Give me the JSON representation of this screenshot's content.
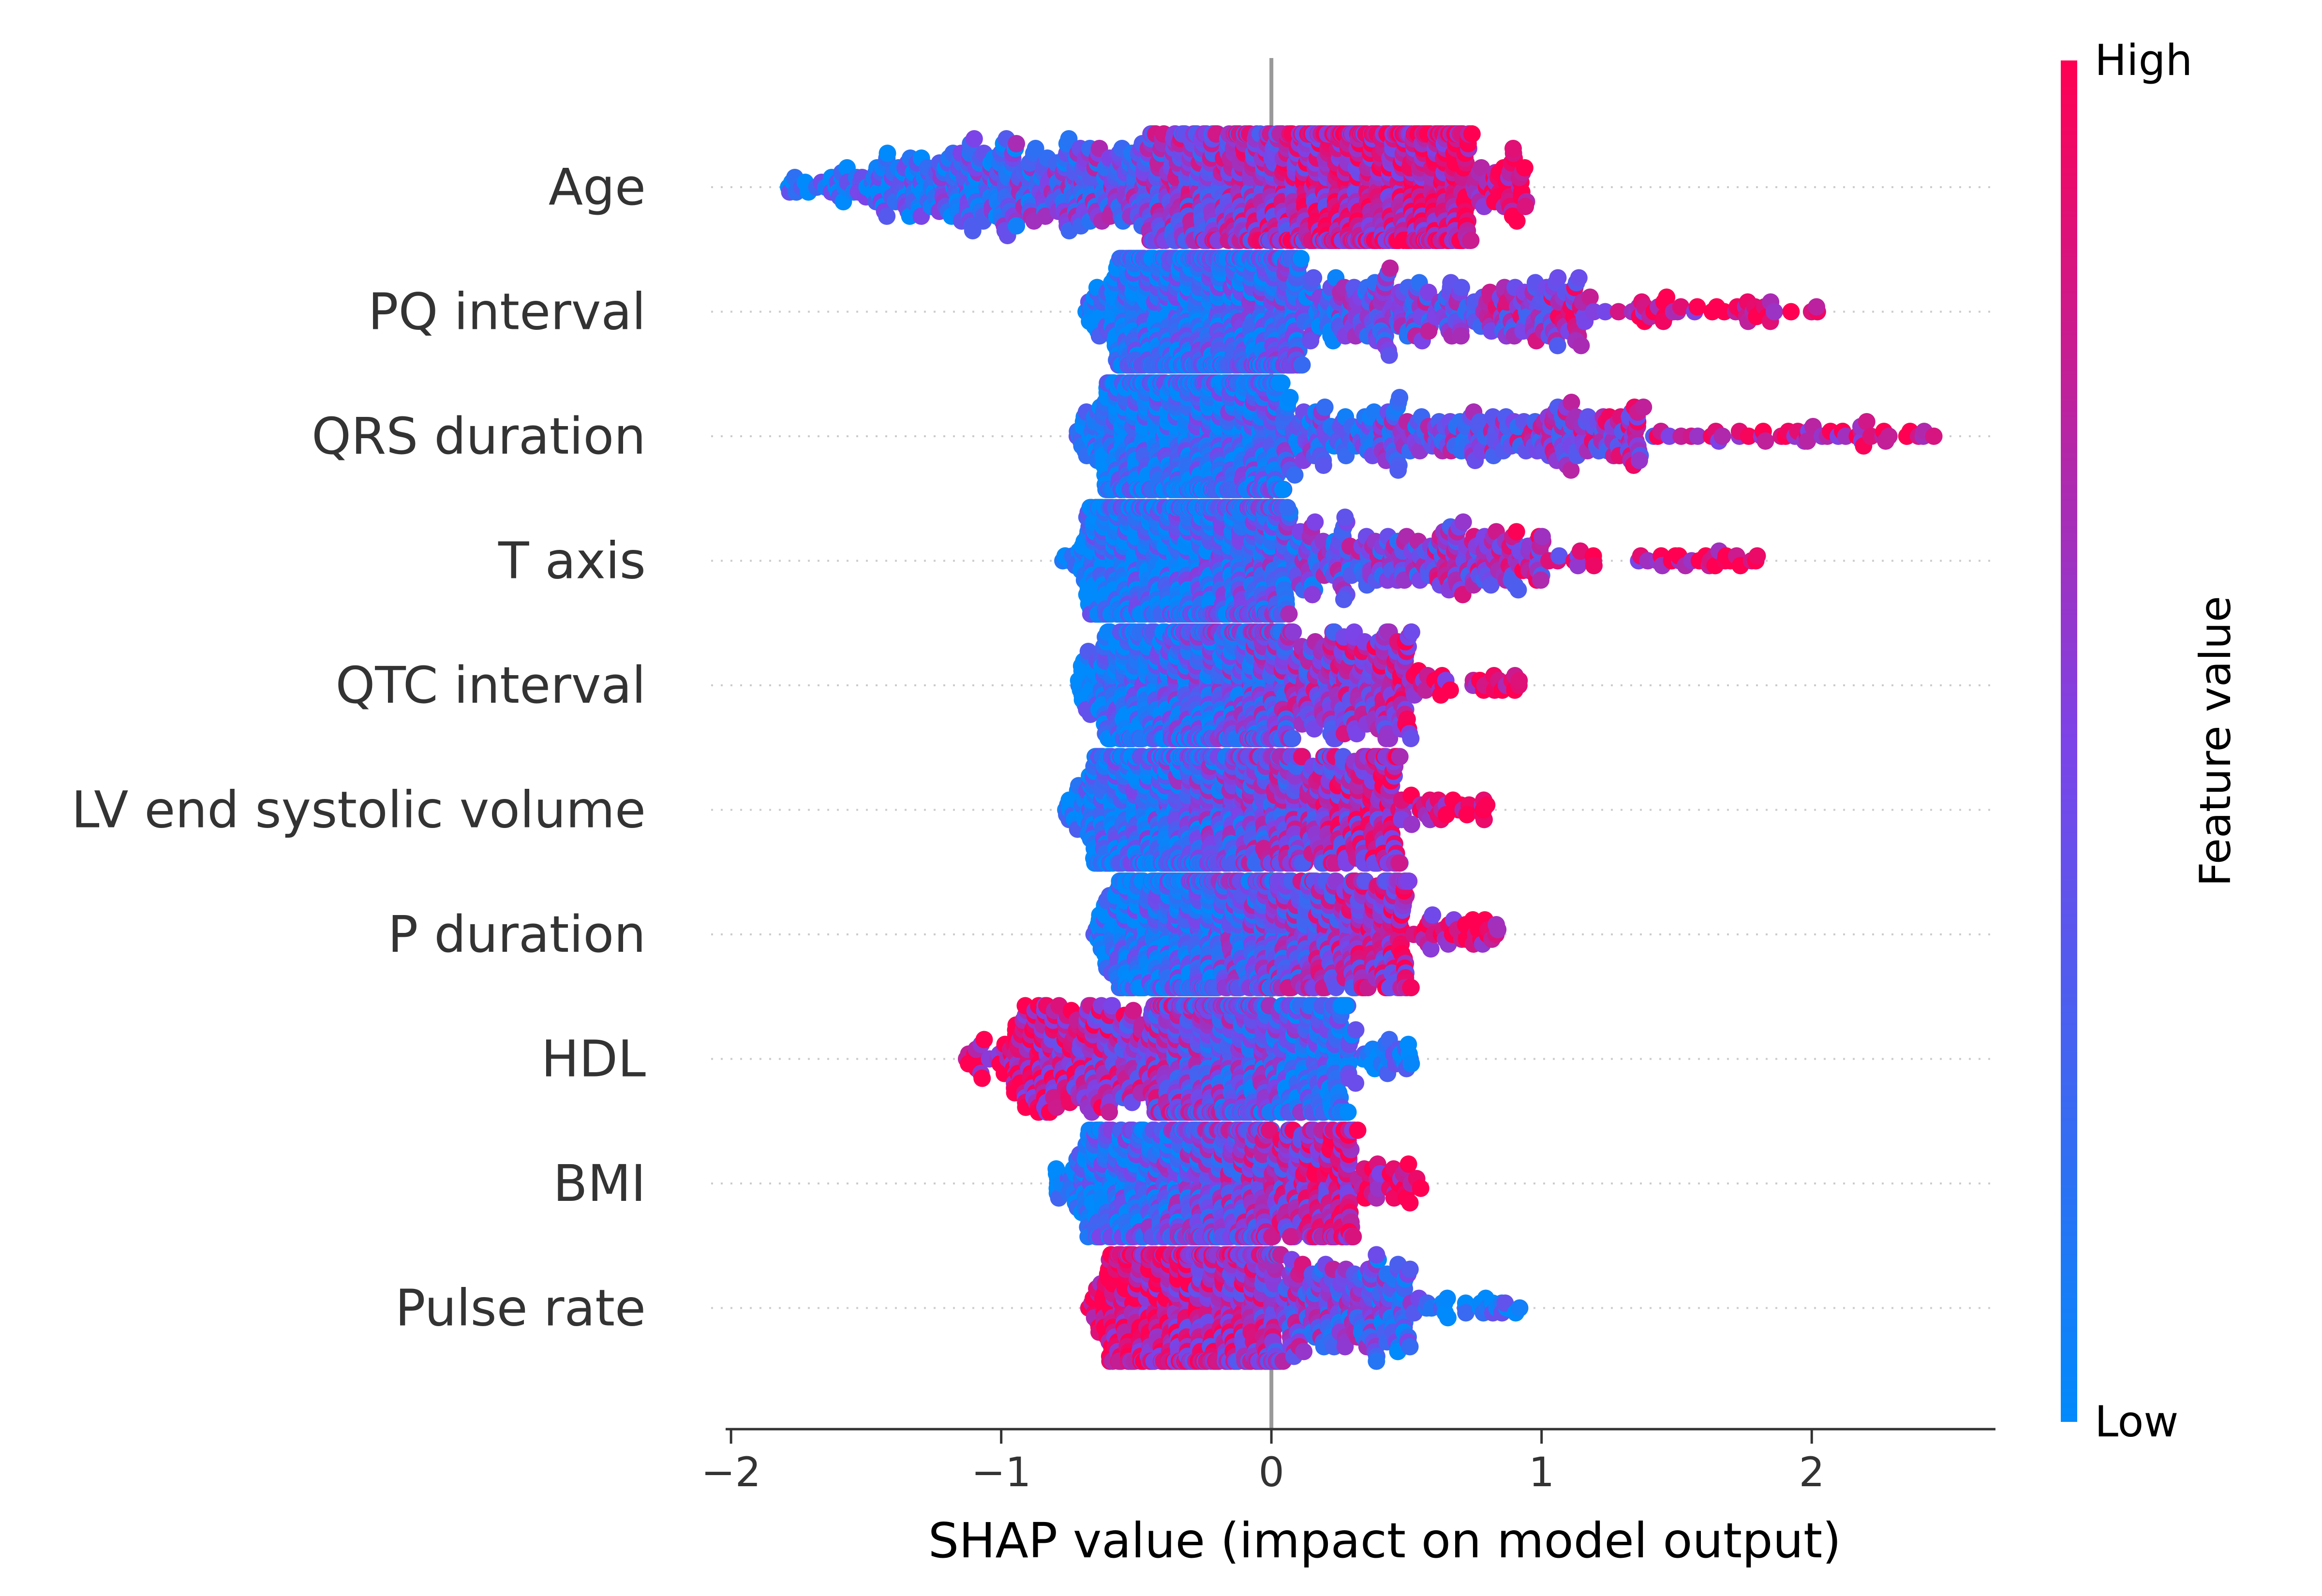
{
  "chart_data": {
    "type": "scatter",
    "subtype": "shap-beeswarm",
    "title": "",
    "xlabel": "SHAP value (impact on model output)",
    "ylabel": "",
    "xlim": [
      -2.02,
      2.68
    ],
    "xticks": [
      -2,
      -1,
      0,
      1,
      2
    ],
    "xtick_labels": [
      "−2",
      "−1",
      "0",
      "1",
      "2"
    ],
    "zero_line": 0,
    "grid": false,
    "colorbar": {
      "label": "Feature value",
      "high_label": "High",
      "low_label": "Low",
      "low_color": "#008afb",
      "mid_color": "#7c43e8",
      "high_color": "#ff0052"
    },
    "features": [
      {
        "name": "Age",
        "min": -1.8,
        "max": 0.95,
        "q1": -0.45,
        "median": 0.1,
        "q3": 0.45,
        "mode": 0.35,
        "color_trend": "increasing",
        "n": 1700
      },
      {
        "name": "PQ interval",
        "min": -0.68,
        "max": 2.02,
        "q1": -0.32,
        "median": -0.18,
        "q3": 0.1,
        "mode": -0.3,
        "color_trend": "increasing",
        "n": 1300,
        "outliers": [
          1.45,
          1.5,
          1.65,
          1.72,
          1.84,
          2.02
        ]
      },
      {
        "name": "QRS duration",
        "min": -0.72,
        "max": 2.45,
        "q1": -0.35,
        "median": -0.2,
        "q3": 0.05,
        "mode": -0.28,
        "color_trend": "increasing",
        "n": 1400,
        "outliers": [
          1.9,
          2.0,
          2.1,
          2.22,
          2.45
        ]
      },
      {
        "name": "T axis",
        "min": -0.78,
        "max": 1.8,
        "q1": -0.38,
        "median": -0.22,
        "q3": 0.05,
        "mode": -0.3,
        "color_trend": "increasing",
        "n": 1300,
        "outliers": [
          1.55,
          1.65,
          1.72,
          1.8
        ]
      },
      {
        "name": "QTC interval",
        "min": -0.72,
        "max": 0.92,
        "q1": -0.35,
        "median": -0.2,
        "q3": 0.05,
        "mode": -0.28,
        "color_trend": "increasing",
        "n": 1200
      },
      {
        "name": "LV end systolic volume",
        "min": -0.76,
        "max": 0.8,
        "q1": -0.4,
        "median": -0.22,
        "q3": 0.08,
        "mode": -0.32,
        "color_trend": "increasing",
        "n": 1200
      },
      {
        "name": "P duration",
        "min": -0.65,
        "max": 0.85,
        "q1": -0.35,
        "median": -0.2,
        "q3": 0.1,
        "mode": -0.3,
        "color_trend": "increasing",
        "n": 1200
      },
      {
        "name": "HDL",
        "min": -1.15,
        "max": 0.52,
        "q1": -0.45,
        "median": -0.22,
        "q3": 0.0,
        "mode": -0.25,
        "color_trend": "decreasing",
        "n": 1200
      },
      {
        "name": "BMI",
        "min": -0.8,
        "max": 0.55,
        "q1": -0.4,
        "median": -0.22,
        "q3": 0.0,
        "mode": -0.27,
        "color_trend": "increasing",
        "n": 1100
      },
      {
        "name": "Pulse rate",
        "min": -0.68,
        "max": 0.92,
        "q1": -0.35,
        "median": -0.2,
        "q3": 0.02,
        "mode": -0.22,
        "color_trend": "decreasing",
        "n": 1000
      }
    ]
  }
}
